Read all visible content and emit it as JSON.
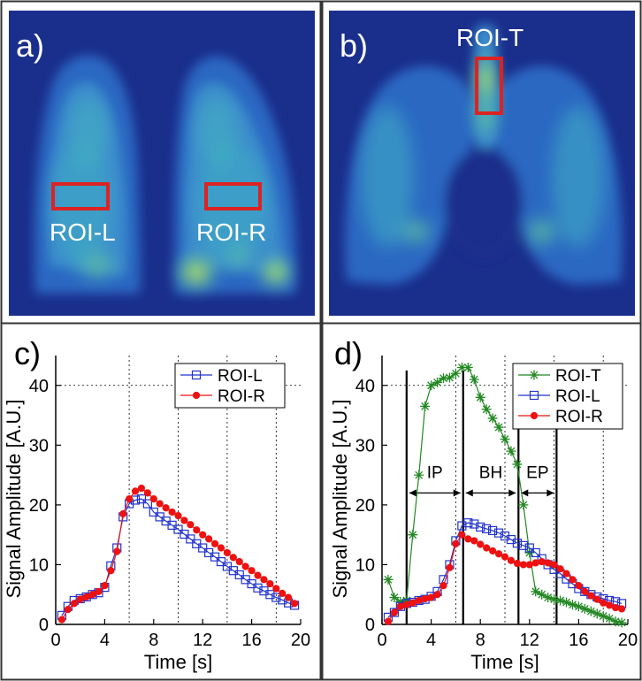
{
  "panels": {
    "a": {
      "label": "a)",
      "roi_labels": [
        "ROI-L",
        "ROI-R"
      ]
    },
    "b": {
      "label": "b)",
      "roi_labels": [
        "ROI-T"
      ]
    },
    "c": {
      "label": "c)"
    },
    "d": {
      "label": "d)"
    }
  },
  "colors": {
    "roi_box": "#dd2222",
    "roi_l": "#2233cc",
    "roi_r": "#ee1111",
    "roi_t": "#228822",
    "image_bg": "#1a2e8c"
  },
  "chart_data": [
    {
      "id": "c",
      "type": "line",
      "title": "",
      "xlabel": "Time [s]",
      "ylabel": "Signal Amplitude [A.U.]",
      "xlim": [
        0,
        20
      ],
      "ylim": [
        0,
        45
      ],
      "xticks": [
        0,
        4,
        8,
        12,
        16,
        20
      ],
      "yticks": [
        0,
        10,
        20,
        30,
        40
      ],
      "grid": "dotted",
      "legend": "top-right",
      "x": [
        0.5,
        1.0,
        1.5,
        2.0,
        2.5,
        3.0,
        3.5,
        4.0,
        4.5,
        5.0,
        5.5,
        6.0,
        6.5,
        7.0,
        7.5,
        8.0,
        8.5,
        9.0,
        9.5,
        10.0,
        10.5,
        11.0,
        11.5,
        12.0,
        12.5,
        13.0,
        13.5,
        14.0,
        14.5,
        15.0,
        15.5,
        16.0,
        16.5,
        17.0,
        17.5,
        18.0,
        18.5,
        19.0,
        19.5
      ],
      "series": [
        {
          "name": "ROI-L",
          "marker": "square",
          "values": [
            1.5,
            3.0,
            4.0,
            4.3,
            4.6,
            5.0,
            5.3,
            6.2,
            9.8,
            12.8,
            18.0,
            20.2,
            20.8,
            21.0,
            20.2,
            18.8,
            18.0,
            17.3,
            16.6,
            15.9,
            15.1,
            14.3,
            13.5,
            12.8,
            12.0,
            11.3,
            10.5,
            9.7,
            9.0,
            8.3,
            7.5,
            6.8,
            6.1,
            5.6,
            5.0,
            4.5,
            4.1,
            3.6,
            3.2
          ]
        },
        {
          "name": "ROI-R",
          "marker": "circle",
          "values": [
            0.8,
            2.5,
            3.5,
            4.2,
            4.6,
            5.0,
            5.5,
            6.5,
            9.0,
            12.2,
            18.5,
            21.0,
            22.3,
            22.8,
            22.0,
            21.0,
            20.2,
            19.5,
            18.8,
            18.2,
            17.4,
            16.7,
            15.8,
            15.0,
            14.3,
            13.5,
            12.8,
            12.0,
            11.2,
            10.5,
            9.7,
            9.0,
            8.2,
            7.5,
            6.8,
            6.0,
            5.2,
            4.5,
            3.5
          ]
        }
      ]
    },
    {
      "id": "d",
      "type": "line",
      "title": "",
      "xlabel": "Time [s]",
      "ylabel": "Signal Amplitude [A.U.]",
      "xlim": [
        0,
        20
      ],
      "ylim": [
        0,
        45
      ],
      "xticks": [
        0,
        4,
        8,
        12,
        16,
        20
      ],
      "yticks": [
        0,
        10,
        20,
        30,
        40
      ],
      "grid": "dotted",
      "legend": "top-right",
      "x": [
        0.5,
        1.0,
        1.5,
        2.0,
        2.5,
        3.0,
        3.5,
        4.0,
        4.5,
        5.0,
        5.5,
        6.0,
        6.5,
        7.0,
        7.5,
        8.0,
        8.5,
        9.0,
        9.5,
        10.0,
        10.5,
        11.0,
        11.5,
        12.0,
        12.5,
        13.0,
        13.5,
        14.0,
        14.5,
        15.0,
        15.5,
        16.0,
        16.5,
        17.0,
        17.5,
        18.0,
        18.5,
        19.0,
        19.5
      ],
      "series": [
        {
          "name": "ROI-T",
          "marker": "star",
          "values": [
            7.5,
            4.5,
            3.8,
            4.0,
            15.0,
            25.0,
            36.5,
            40.0,
            40.5,
            41.2,
            41.3,
            42.0,
            43.0,
            43.0,
            41.0,
            38.0,
            36.0,
            34.5,
            33.0,
            31.0,
            29.0,
            26.8,
            20.0,
            12.0,
            5.5,
            5.0,
            4.5,
            4.2,
            4.0,
            3.7,
            3.3,
            3.0,
            2.6,
            2.2,
            1.8,
            1.4,
            1.0,
            0.5,
            0.3
          ]
        },
        {
          "name": "ROI-L",
          "marker": "square",
          "values": [
            1.2,
            2.0,
            3.0,
            3.5,
            3.7,
            4.0,
            4.2,
            4.7,
            5.5,
            7.5,
            10.0,
            14.0,
            16.5,
            17.0,
            16.8,
            16.3,
            16.0,
            15.7,
            15.3,
            14.8,
            14.2,
            13.6,
            13.2,
            12.8,
            12.0,
            11.0,
            10.0,
            9.2,
            8.5,
            7.6,
            6.8,
            6.0,
            5.5,
            5.0,
            4.6,
            4.3,
            4.0,
            3.8,
            3.5
          ]
        },
        {
          "name": "ROI-R",
          "marker": "circle",
          "values": [
            0.5,
            2.0,
            3.0,
            3.3,
            3.6,
            4.0,
            4.3,
            4.5,
            5.0,
            6.5,
            9.5,
            13.5,
            15.0,
            14.3,
            14.0,
            13.4,
            12.8,
            12.3,
            11.8,
            11.3,
            10.7,
            10.2,
            10.0,
            10.0,
            10.3,
            10.5,
            10.3,
            10.0,
            9.3,
            8.5,
            7.5,
            6.5,
            5.5,
            4.8,
            4.2,
            3.6,
            3.2,
            2.8,
            2.6
          ]
        }
      ],
      "phase_lines_x": [
        2.0,
        6.6,
        11.1,
        14.2
      ],
      "phases": [
        {
          "label": "IP",
          "from": 2.0,
          "to": 6.6
        },
        {
          "label": "BH",
          "from": 6.6,
          "to": 11.1
        },
        {
          "label": "EP",
          "from": 11.1,
          "to": 14.2
        }
      ]
    }
  ]
}
